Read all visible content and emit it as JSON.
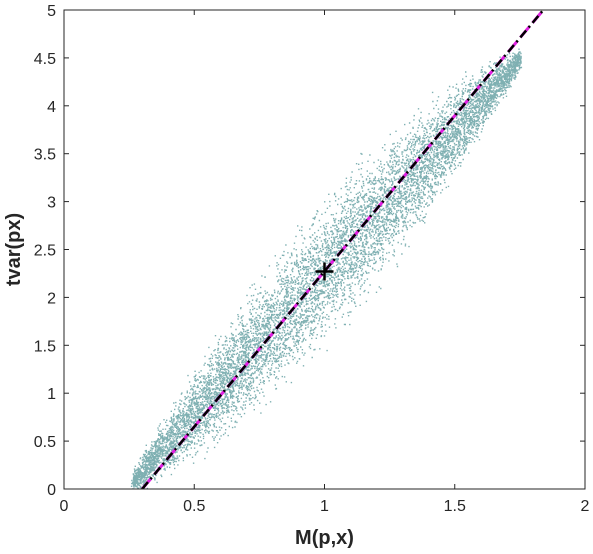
{
  "chart_data": {
    "type": "scatter",
    "title": "",
    "xlabel": "M(p,x)",
    "ylabel": "tvar(px)",
    "xlim": [
      0,
      2
    ],
    "ylim": [
      0,
      5
    ],
    "xticks": [
      0,
      0.5,
      1,
      1.5,
      2
    ],
    "xtick_labels": [
      "0",
      "0.5",
      "1",
      "1.5",
      "2"
    ],
    "yticks": [
      0,
      0.5,
      1,
      1.5,
      2,
      2.5,
      3,
      3.5,
      4,
      4.5,
      5
    ],
    "ytick_labels": [
      "0",
      "0.5",
      "1",
      "1.5",
      "2",
      "2.5",
      "3",
      "3.5",
      "4",
      "4.5",
      "5"
    ],
    "grid": false,
    "box": true,
    "scatter_cloud": {
      "color": "#7fb0b2",
      "x_range": [
        0.26,
        1.75
      ],
      "band_center_line": {
        "slope": 2.97,
        "intercept": -0.7
      },
      "band_half_width_y": [
        0.12,
        0.9
      ],
      "approx_point_count": 9000
    },
    "lines": [
      {
        "style": "dashed",
        "color": "#e020e0",
        "x": [
          0.3,
          1.84
        ],
        "y": [
          0,
          5
        ]
      },
      {
        "style": "dashdot",
        "color": "#000000",
        "x": [
          0.3,
          1.84
        ],
        "y": [
          0,
          5
        ]
      }
    ],
    "markers": [
      {
        "shape": "plus",
        "color": "#000000",
        "x": 1.0,
        "y": 2.27
      }
    ]
  }
}
